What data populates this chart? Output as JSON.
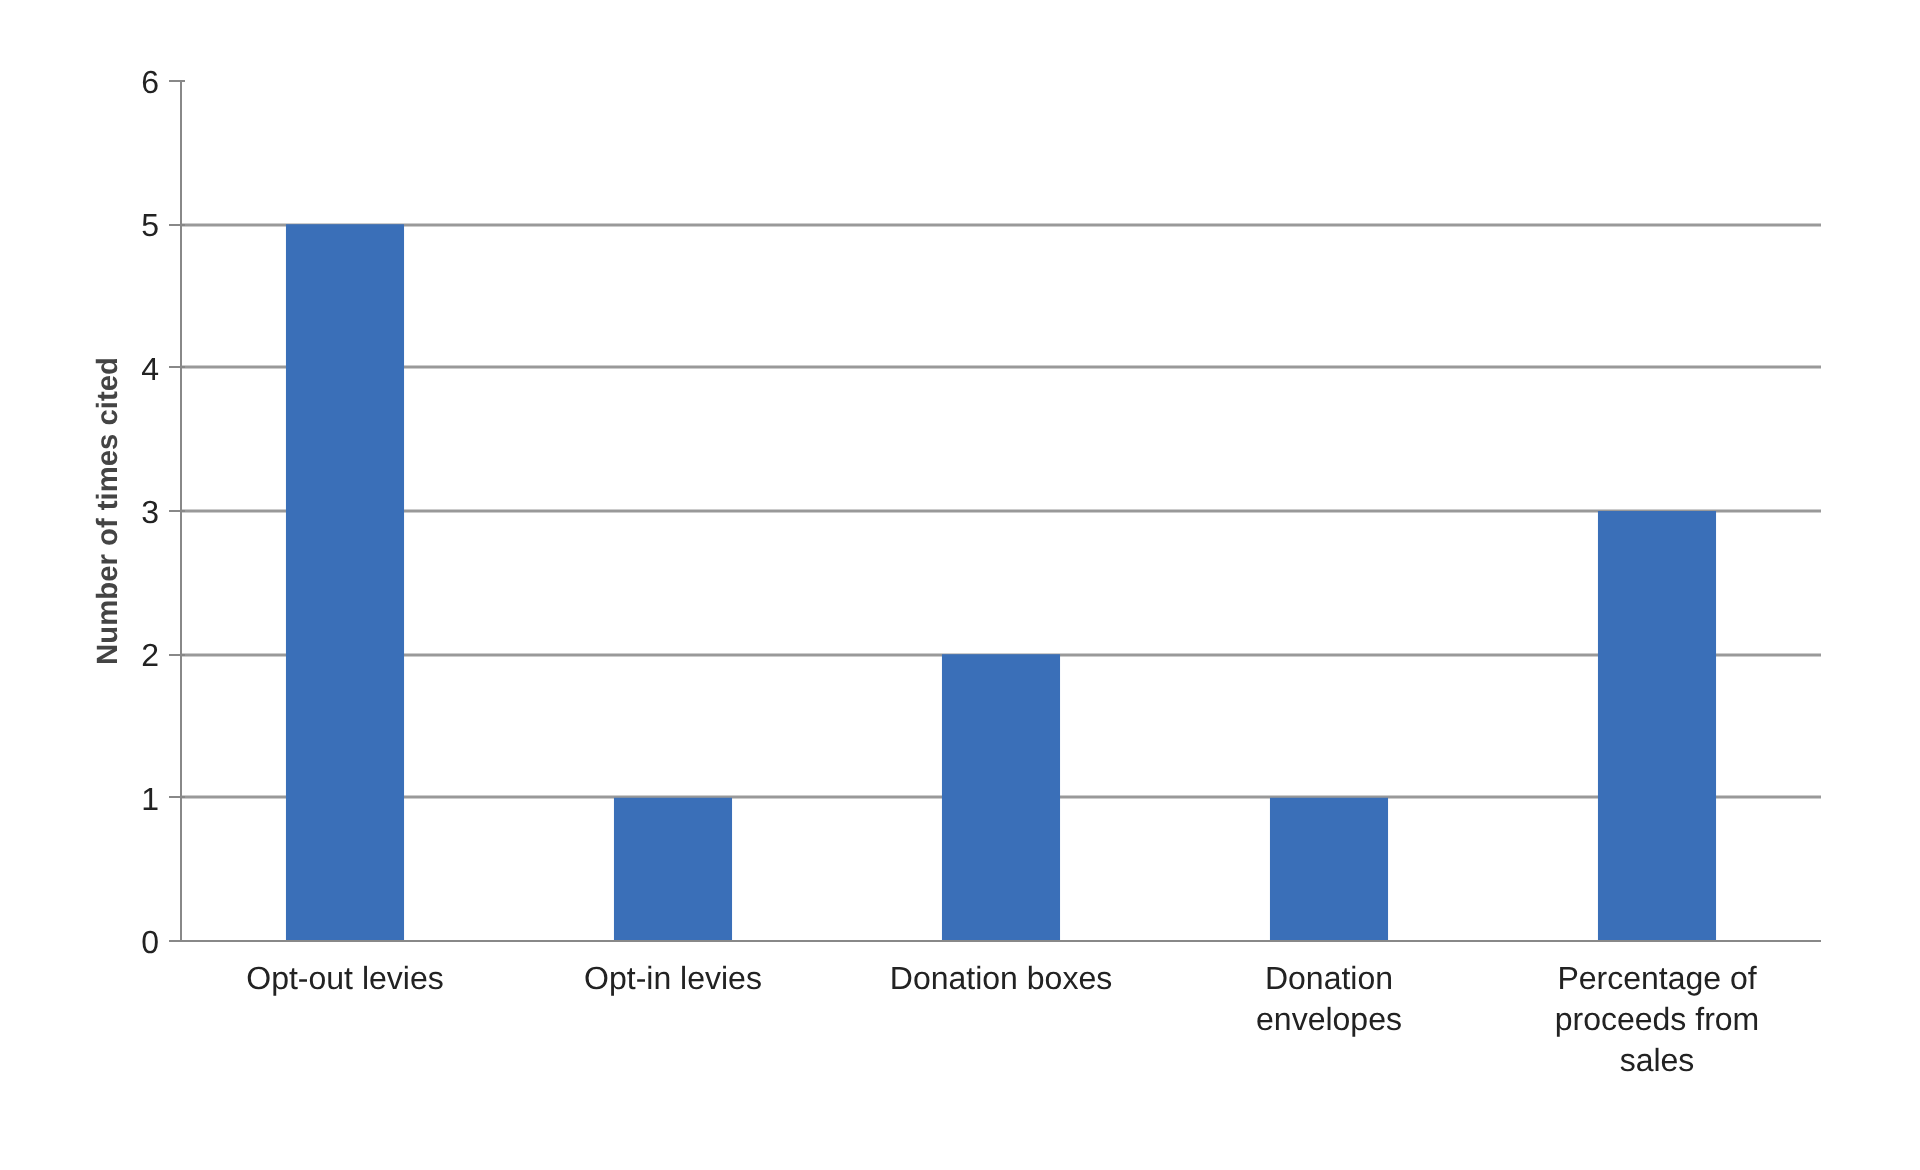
{
  "chart_data": {
    "type": "bar",
    "ylabel": "Number of times cited",
    "categories": [
      "Opt-out levies",
      "Opt-in levies",
      "Donation boxes",
      "Donation envelopes",
      "Percentage of proceeds from sales"
    ],
    "values": [
      5,
      1,
      2,
      1,
      3
    ],
    "color": "#3a6fb8",
    "ylim": [
      0,
      6
    ],
    "yticks": [
      0,
      1,
      2,
      3,
      4,
      5,
      6
    ],
    "grid": "y"
  }
}
